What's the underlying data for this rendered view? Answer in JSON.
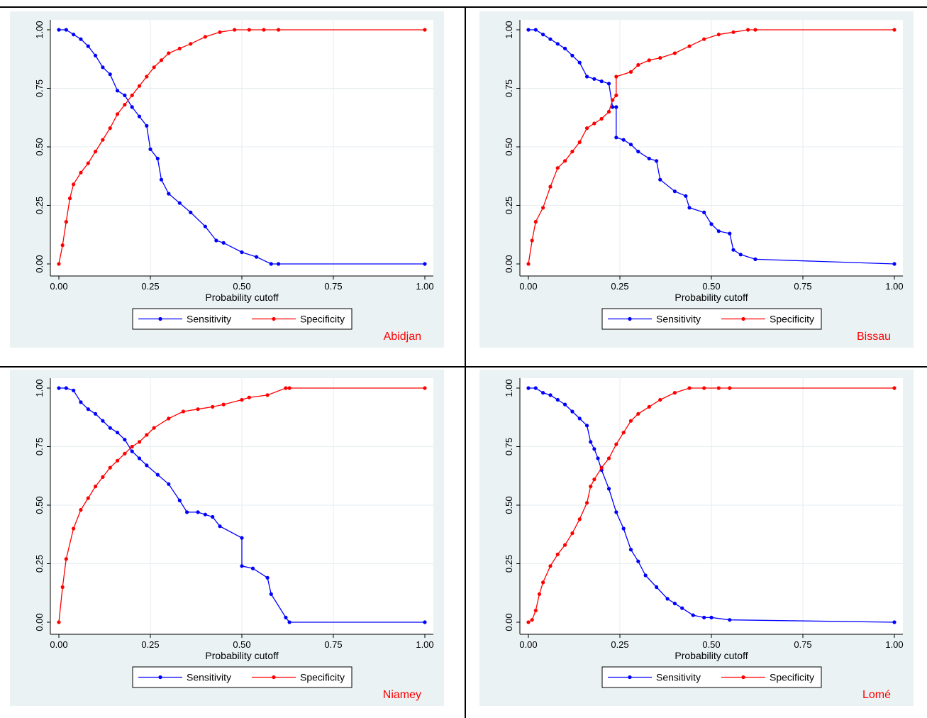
{
  "colors": {
    "sensitivity": "#0000ff",
    "specificity": "#ff0000",
    "city_label": "#ff0000",
    "panel_bg": "#eaf2f3",
    "plot_bg": "#ffffff",
    "grid": "#e6eef0"
  },
  "chart_data": [
    {
      "type": "line",
      "city": "Abidjan",
      "xlabel": "Probability cutoff",
      "ylabel": "",
      "xlim": [
        0,
        1
      ],
      "ylim": [
        0,
        1
      ],
      "xticks": [
        "0.00",
        "0.25",
        "0.50",
        "0.75",
        "1.00"
      ],
      "yticks": [
        "0.00",
        "0.25",
        "0.50",
        "0.75",
        "1.00"
      ],
      "grid": true,
      "legend_position": "bottom",
      "series": [
        {
          "name": "Sensitivity",
          "x": [
            0.0,
            0.02,
            0.04,
            0.06,
            0.08,
            0.1,
            0.12,
            0.14,
            0.16,
            0.18,
            0.2,
            0.22,
            0.24,
            0.25,
            0.27,
            0.28,
            0.3,
            0.33,
            0.36,
            0.4,
            0.43,
            0.45,
            0.5,
            0.54,
            0.58,
            0.6,
            1.0
          ],
          "y": [
            1.0,
            1.0,
            0.98,
            0.96,
            0.93,
            0.89,
            0.84,
            0.81,
            0.74,
            0.72,
            0.67,
            0.63,
            0.59,
            0.49,
            0.45,
            0.36,
            0.3,
            0.26,
            0.22,
            0.16,
            0.1,
            0.09,
            0.05,
            0.03,
            0.0,
            0.0,
            0.0
          ]
        },
        {
          "name": "Specificity",
          "x": [
            0.0,
            0.01,
            0.02,
            0.03,
            0.04,
            0.06,
            0.08,
            0.1,
            0.12,
            0.14,
            0.16,
            0.18,
            0.2,
            0.22,
            0.24,
            0.26,
            0.28,
            0.3,
            0.33,
            0.36,
            0.4,
            0.44,
            0.48,
            0.52,
            0.56,
            0.6,
            1.0
          ],
          "y": [
            0.0,
            0.08,
            0.18,
            0.28,
            0.34,
            0.39,
            0.43,
            0.48,
            0.53,
            0.58,
            0.64,
            0.68,
            0.72,
            0.76,
            0.8,
            0.84,
            0.87,
            0.9,
            0.92,
            0.94,
            0.97,
            0.99,
            1.0,
            1.0,
            1.0,
            1.0,
            1.0
          ]
        }
      ]
    },
    {
      "type": "line",
      "city": "Bissau",
      "xlabel": "Probability cutoff",
      "ylabel": "",
      "xlim": [
        0,
        1
      ],
      "ylim": [
        0,
        1
      ],
      "xticks": [
        "0.00",
        "0.25",
        "0.50",
        "0.75",
        "1.00"
      ],
      "yticks": [
        "0.00",
        "0.25",
        "0.50",
        "0.75",
        "1.00"
      ],
      "grid": true,
      "legend_position": "bottom",
      "series": [
        {
          "name": "Sensitivity",
          "x": [
            0.0,
            0.02,
            0.04,
            0.06,
            0.08,
            0.1,
            0.12,
            0.14,
            0.16,
            0.18,
            0.2,
            0.22,
            0.23,
            0.24,
            0.24,
            0.26,
            0.28,
            0.3,
            0.33,
            0.35,
            0.36,
            0.4,
            0.43,
            0.44,
            0.48,
            0.5,
            0.52,
            0.55,
            0.56,
            0.58,
            0.62,
            1.0
          ],
          "y": [
            1.0,
            1.0,
            0.98,
            0.96,
            0.94,
            0.92,
            0.89,
            0.86,
            0.8,
            0.79,
            0.78,
            0.77,
            0.67,
            0.67,
            0.54,
            0.53,
            0.51,
            0.48,
            0.45,
            0.44,
            0.36,
            0.31,
            0.29,
            0.24,
            0.22,
            0.17,
            0.14,
            0.13,
            0.06,
            0.04,
            0.02,
            0.0
          ]
        },
        {
          "name": "Specificity",
          "x": [
            0.0,
            0.01,
            0.02,
            0.04,
            0.06,
            0.08,
            0.1,
            0.12,
            0.14,
            0.16,
            0.18,
            0.2,
            0.22,
            0.23,
            0.24,
            0.24,
            0.28,
            0.3,
            0.33,
            0.36,
            0.4,
            0.44,
            0.48,
            0.52,
            0.56,
            0.6,
            0.62,
            1.0
          ],
          "y": [
            0.0,
            0.1,
            0.18,
            0.24,
            0.33,
            0.41,
            0.44,
            0.48,
            0.52,
            0.58,
            0.6,
            0.62,
            0.65,
            0.7,
            0.72,
            0.8,
            0.82,
            0.85,
            0.87,
            0.88,
            0.9,
            0.93,
            0.96,
            0.98,
            0.99,
            1.0,
            1.0,
            1.0
          ]
        }
      ]
    },
    {
      "type": "line",
      "city": "Niamey",
      "xlabel": "Probability cutoff",
      "ylabel": "",
      "xlim": [
        0,
        1
      ],
      "ylim": [
        0,
        1
      ],
      "xticks": [
        "0.00",
        "0.25",
        "0.50",
        "0.75",
        "1.00"
      ],
      "yticks": [
        "0.00",
        "0.25",
        "0.50",
        "0.75",
        "1.00"
      ],
      "grid": true,
      "legend_position": "bottom",
      "series": [
        {
          "name": "Sensitivity",
          "x": [
            0.0,
            0.02,
            0.04,
            0.06,
            0.08,
            0.1,
            0.12,
            0.14,
            0.16,
            0.18,
            0.2,
            0.22,
            0.24,
            0.27,
            0.3,
            0.33,
            0.35,
            0.38,
            0.4,
            0.42,
            0.44,
            0.5,
            0.5,
            0.53,
            0.57,
            0.58,
            0.62,
            0.63,
            1.0
          ],
          "y": [
            1.0,
            1.0,
            0.99,
            0.94,
            0.91,
            0.89,
            0.86,
            0.83,
            0.81,
            0.78,
            0.73,
            0.7,
            0.67,
            0.63,
            0.59,
            0.52,
            0.47,
            0.47,
            0.46,
            0.45,
            0.41,
            0.36,
            0.24,
            0.23,
            0.19,
            0.12,
            0.02,
            0.0,
            0.0
          ]
        },
        {
          "name": "Specificity",
          "x": [
            0.0,
            0.01,
            0.02,
            0.04,
            0.06,
            0.08,
            0.1,
            0.12,
            0.14,
            0.16,
            0.18,
            0.2,
            0.22,
            0.24,
            0.26,
            0.3,
            0.34,
            0.38,
            0.42,
            0.45,
            0.5,
            0.52,
            0.57,
            0.62,
            0.63,
            1.0
          ],
          "y": [
            0.0,
            0.15,
            0.27,
            0.4,
            0.48,
            0.53,
            0.58,
            0.62,
            0.66,
            0.69,
            0.72,
            0.75,
            0.77,
            0.8,
            0.83,
            0.87,
            0.9,
            0.91,
            0.92,
            0.93,
            0.95,
            0.96,
            0.97,
            1.0,
            1.0,
            1.0
          ]
        }
      ]
    },
    {
      "type": "line",
      "city": "Lomé",
      "xlabel": "Probability cutoff",
      "ylabel": "",
      "xlim": [
        0,
        1
      ],
      "ylim": [
        0,
        1
      ],
      "xticks": [
        "0.00",
        "0.25",
        "0.50",
        "0.75",
        "1.00"
      ],
      "yticks": [
        "0.00",
        "0.25",
        "0.50",
        "0.75",
        "1.00"
      ],
      "grid": true,
      "legend_position": "bottom",
      "series": [
        {
          "name": "Sensitivity",
          "x": [
            0.0,
            0.02,
            0.04,
            0.06,
            0.08,
            0.1,
            0.12,
            0.14,
            0.16,
            0.17,
            0.18,
            0.19,
            0.2,
            0.22,
            0.24,
            0.26,
            0.28,
            0.3,
            0.32,
            0.35,
            0.38,
            0.4,
            0.42,
            0.45,
            0.48,
            0.5,
            0.55,
            1.0
          ],
          "y": [
            1.0,
            1.0,
            0.98,
            0.97,
            0.95,
            0.93,
            0.9,
            0.87,
            0.84,
            0.77,
            0.74,
            0.7,
            0.65,
            0.57,
            0.47,
            0.4,
            0.31,
            0.26,
            0.2,
            0.15,
            0.1,
            0.08,
            0.06,
            0.03,
            0.02,
            0.02,
            0.01,
            0.0
          ]
        },
        {
          "name": "Specificity",
          "x": [
            0.0,
            0.01,
            0.02,
            0.03,
            0.04,
            0.06,
            0.08,
            0.1,
            0.12,
            0.14,
            0.16,
            0.17,
            0.18,
            0.2,
            0.22,
            0.24,
            0.26,
            0.28,
            0.3,
            0.33,
            0.36,
            0.4,
            0.44,
            0.48,
            0.52,
            0.55,
            1.0
          ],
          "y": [
            0.0,
            0.01,
            0.05,
            0.12,
            0.17,
            0.24,
            0.29,
            0.33,
            0.38,
            0.44,
            0.51,
            0.58,
            0.61,
            0.66,
            0.7,
            0.76,
            0.81,
            0.86,
            0.89,
            0.92,
            0.95,
            0.98,
            1.0,
            1.0,
            1.0,
            1.0,
            1.0
          ]
        }
      ]
    }
  ]
}
